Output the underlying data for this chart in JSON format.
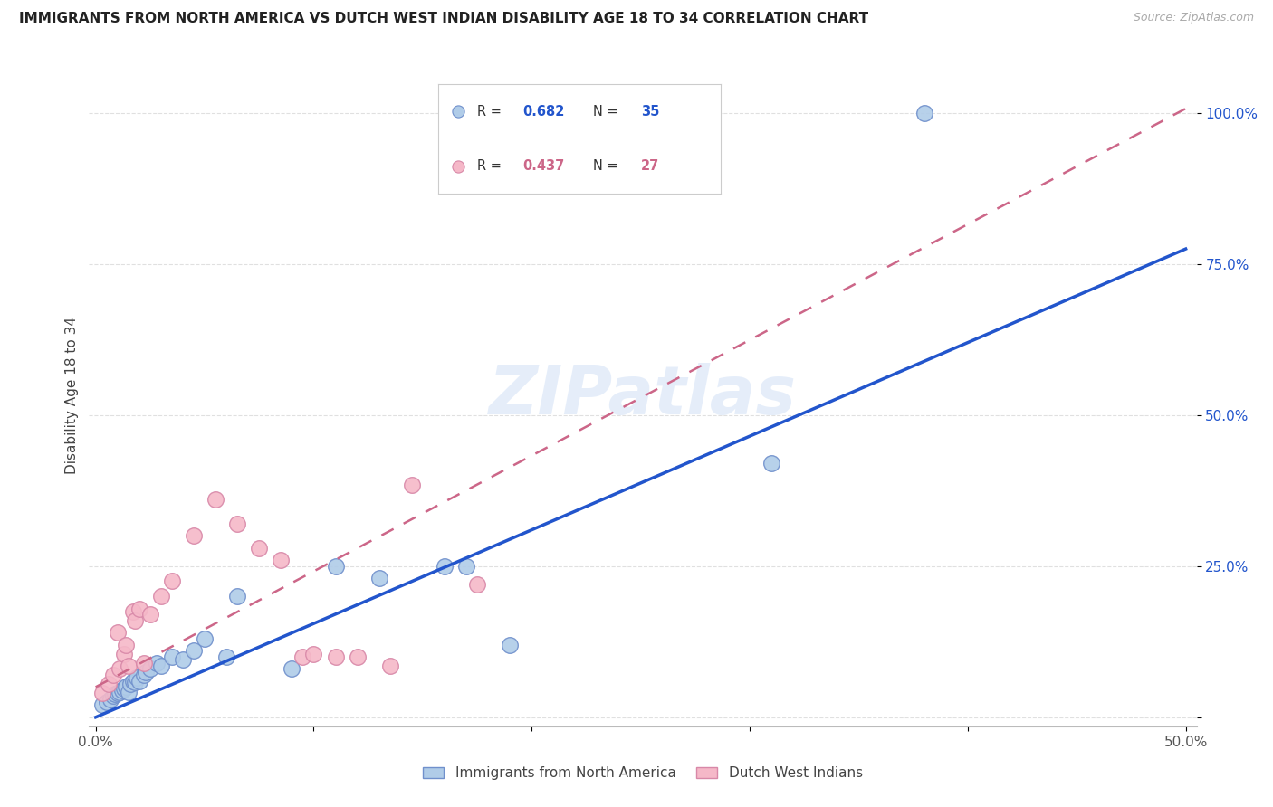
{
  "title": "IMMIGRANTS FROM NORTH AMERICA VS DUTCH WEST INDIAN DISABILITY AGE 18 TO 34 CORRELATION CHART",
  "source": "Source: ZipAtlas.com",
  "ylabel": "Disability Age 18 to 34",
  "xlim": [
    -0.003,
    0.505
  ],
  "ylim": [
    -0.015,
    1.08
  ],
  "blue_R": 0.682,
  "blue_N": 35,
  "pink_R": 0.437,
  "pink_N": 27,
  "blue_color": "#b0cce8",
  "blue_edge": "#7090cc",
  "pink_color": "#f5b8c8",
  "pink_edge": "#d888a8",
  "blue_line_color": "#2255cc",
  "pink_line_color": "#cc6688",
  "grid_color": "#e0e0e0",
  "blue_scatter_x": [
    0.003,
    0.005,
    0.007,
    0.008,
    0.009,
    0.01,
    0.011,
    0.012,
    0.013,
    0.014,
    0.015,
    0.016,
    0.017,
    0.018,
    0.019,
    0.02,
    0.022,
    0.023,
    0.025,
    0.028,
    0.03,
    0.035,
    0.04,
    0.045,
    0.05,
    0.06,
    0.065,
    0.09,
    0.11,
    0.13,
    0.16,
    0.17,
    0.19,
    0.31,
    0.38
  ],
  "blue_scatter_y": [
    0.02,
    0.025,
    0.03,
    0.035,
    0.038,
    0.04,
    0.042,
    0.045,
    0.048,
    0.05,
    0.042,
    0.055,
    0.06,
    0.058,
    0.065,
    0.06,
    0.07,
    0.075,
    0.08,
    0.09,
    0.085,
    0.1,
    0.095,
    0.11,
    0.13,
    0.1,
    0.2,
    0.08,
    0.25,
    0.23,
    0.25,
    0.25,
    0.12,
    0.42,
    1.0
  ],
  "pink_scatter_x": [
    0.003,
    0.006,
    0.008,
    0.01,
    0.011,
    0.013,
    0.014,
    0.015,
    0.017,
    0.018,
    0.02,
    0.022,
    0.025,
    0.03,
    0.035,
    0.045,
    0.055,
    0.065,
    0.075,
    0.085,
    0.095,
    0.1,
    0.11,
    0.12,
    0.135,
    0.145,
    0.175
  ],
  "pink_scatter_y": [
    0.04,
    0.055,
    0.07,
    0.14,
    0.08,
    0.105,
    0.12,
    0.085,
    0.175,
    0.16,
    0.18,
    0.09,
    0.17,
    0.2,
    0.225,
    0.3,
    0.36,
    0.32,
    0.28,
    0.26,
    0.1,
    0.105,
    0.1,
    0.1,
    0.085,
    0.385,
    0.22
  ],
  "blue_line_x0": 0.0,
  "blue_line_y0": 0.0,
  "blue_line_x1": 0.5,
  "blue_line_y1": 0.775,
  "pink_line_x0": 0.0,
  "pink_line_y0": 0.05,
  "pink_line_x1": 0.175,
  "pink_line_y1": 0.385
}
